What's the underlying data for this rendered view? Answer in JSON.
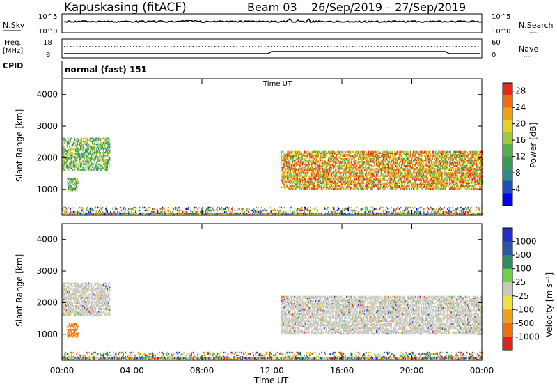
{
  "header": {
    "station": "Kapuskasing (fitACF)",
    "beam": "Beam 03",
    "dates": "26/Sep/2019 – 27/Sep/2019"
  },
  "sky_panel": {
    "left_label": "N.Sky",
    "right_label": "N.Search",
    "right_legend_line": "·········",
    "y_ticks_left": [
      "10^5",
      "10^0"
    ],
    "y_ticks_right": [
      "10^5",
      "10^0"
    ]
  },
  "freq_panel": {
    "left_label_line1": "Freq.",
    "left_label_line2": "[MHz]",
    "right_label": "Nave",
    "right_legend_line": "····",
    "y_ticks_left": [
      "18",
      "8"
    ],
    "y_ticks_right": [
      "60",
      "0"
    ]
  },
  "cpid_panel": {
    "label": "CPID",
    "program": "normal (fast) 151"
  },
  "chart_data": [
    {
      "type": "heatmap",
      "title": "",
      "parameter": "Power",
      "ylabel": "Slant Range [km]",
      "xlabel": "Time UT",
      "x_ticks": [
        "00:00",
        "04:00",
        "08:00",
        "12:00",
        "16:00",
        "20:00",
        "00:00"
      ],
      "y_ticks": [
        "1000",
        "2000",
        "3000",
        "4000"
      ],
      "ylim": [
        180,
        4500
      ],
      "xlim_hours": [
        0,
        24
      ],
      "colorbar_label": "Power [dB]",
      "colorbar_ticks": [
        "4",
        "8",
        "12",
        "16",
        "20",
        "24",
        "28"
      ],
      "colorbar_range": [
        0,
        30
      ],
      "colors": [
        "#0000ff",
        "#1e50c0",
        "#2f8a8a",
        "#3a9a5a",
        "#56b04a",
        "#9fc93a",
        "#e8d020",
        "#f0a010",
        "#f06a10",
        "#e8281a"
      ],
      "regions": [
        {
          "t_start": 0.0,
          "t_end": 2.7,
          "r_min": 1600,
          "r_max": 2600,
          "level": "medium"
        },
        {
          "t_start": 0.3,
          "t_end": 0.9,
          "r_min": 950,
          "r_max": 1350,
          "level": "medium"
        },
        {
          "t_start": 12.5,
          "t_end": 24.0,
          "r_min": 1000,
          "r_max": 2200,
          "level": "high"
        },
        {
          "t_start": 0.0,
          "t_end": 24.0,
          "r_min": 180,
          "r_max": 450,
          "level": "mixed"
        }
      ]
    },
    {
      "type": "heatmap",
      "title": "",
      "parameter": "Velocity",
      "ylabel": "Slant Range [km]",
      "xlabel": "Time UT",
      "x_ticks": [
        "00:00",
        "04:00",
        "08:00",
        "12:00",
        "16:00",
        "20:00",
        "00:00"
      ],
      "y_ticks": [
        "1000",
        "2000",
        "3000",
        "4000"
      ],
      "ylim": [
        180,
        4500
      ],
      "xlim_hours": [
        0,
        24
      ],
      "colorbar_label": "Velocity [m s⁻¹]",
      "colorbar_ticks": [
        "1000",
        "500",
        "100",
        "25",
        "-25",
        "-100",
        "-500",
        "-1000"
      ],
      "colors": [
        "#2030c8",
        "#2a56a8",
        "#2e8a60",
        "#6fd04a",
        "#c8c8c0",
        "#f0e040",
        "#f0a020",
        "#f07010",
        "#e02020"
      ],
      "regions": [
        {
          "t_start": 0.0,
          "t_end": 2.7,
          "r_min": 1600,
          "r_max": 2600,
          "level": "ground"
        },
        {
          "t_start": 0.3,
          "t_end": 0.9,
          "r_min": 900,
          "r_max": 1350,
          "level": "negative"
        },
        {
          "t_start": 12.5,
          "t_end": 24.0,
          "r_min": 1000,
          "r_max": 2200,
          "level": "ground"
        },
        {
          "t_start": 0.0,
          "t_end": 24.0,
          "r_min": 180,
          "r_max": 450,
          "level": "mixed"
        }
      ]
    }
  ]
}
